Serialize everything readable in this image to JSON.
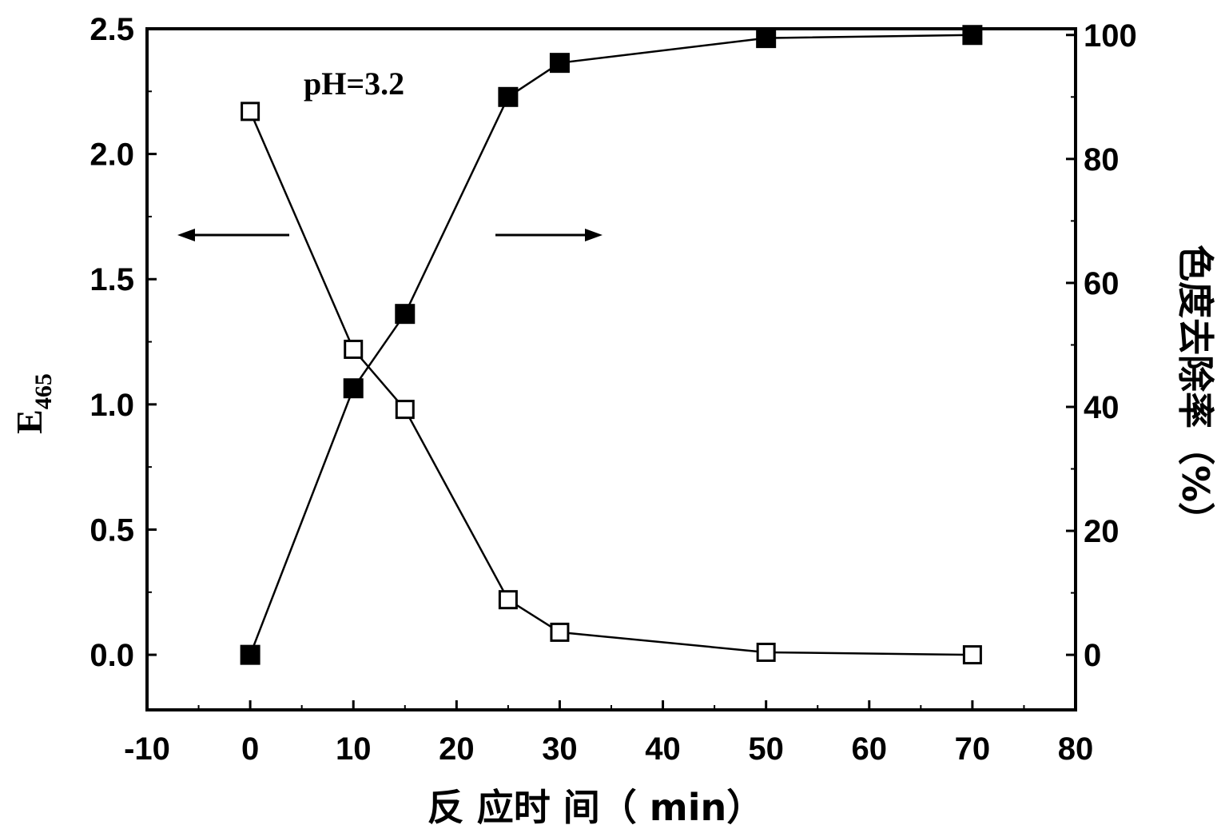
{
  "chart_data": {
    "type": "line",
    "xlabel": "反 应时 间（ min）",
    "ylabel_left": "E",
    "ylabel_left_sub": "465",
    "ylabel_right": "色度去除率（%）",
    "xlim": [
      -10,
      80
    ],
    "ylim_left": [
      -0.22,
      2.5
    ],
    "ylim_right": [
      -8.88,
      101
    ],
    "x_ticks": [
      -10,
      0,
      10,
      20,
      30,
      40,
      50,
      60,
      70,
      80
    ],
    "y_left_ticks": [
      "0.0",
      "0.5",
      "1.0",
      "1.5",
      "2.0",
      "2.5"
    ],
    "y_right_ticks": [
      0,
      20,
      40,
      60,
      80,
      100
    ],
    "annotation": "pH=3.2",
    "grid": false,
    "legend": "none",
    "series": [
      {
        "axis": "left",
        "marker": "open-square",
        "x": [
          0,
          10,
          15,
          25,
          30,
          50,
          70
        ],
        "values": [
          2.17,
          1.22,
          0.98,
          0.22,
          0.09,
          0.01,
          0.0
        ]
      },
      {
        "axis": "right",
        "marker": "filled-square",
        "x": [
          0,
          10,
          15,
          25,
          30,
          50,
          70
        ],
        "values": [
          0,
          43,
          55,
          90,
          95.5,
          99.5,
          100
        ]
      }
    ],
    "arrows": [
      {
        "direction": "left",
        "points_to": "left"
      },
      {
        "direction": "right",
        "points_to": "right"
      }
    ]
  }
}
